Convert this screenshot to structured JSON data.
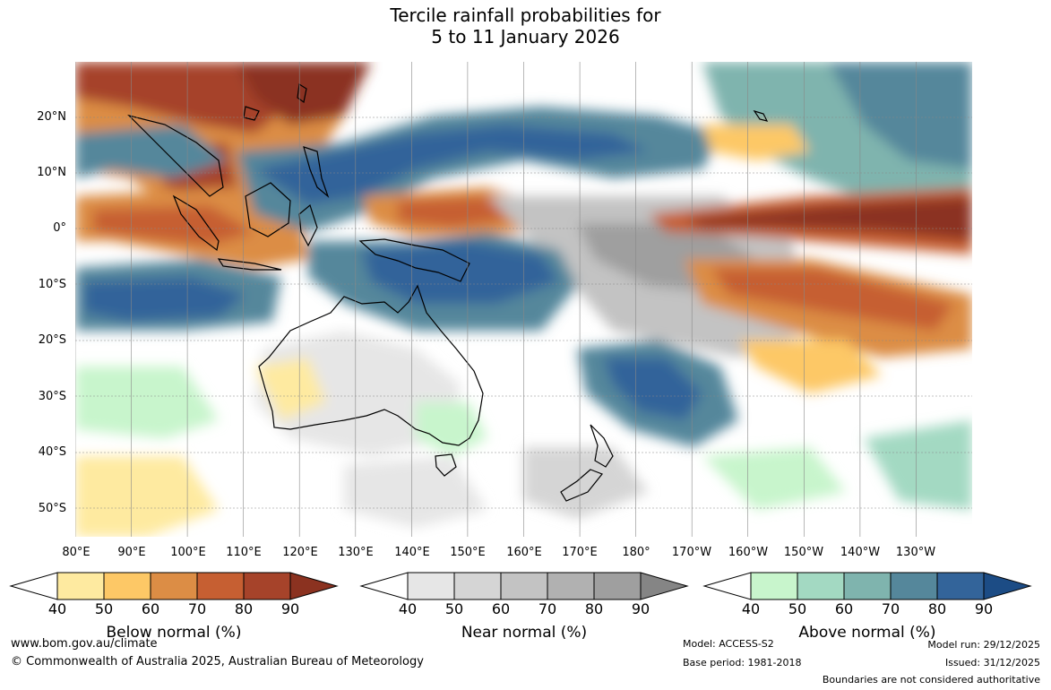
{
  "title": {
    "line1": "Tercile rainfall probabilities for",
    "line2": "5 to 11 January 2026"
  },
  "map": {
    "lat_labels": [
      "20°N",
      "10°N",
      "0°",
      "10°S",
      "20°S",
      "30°S",
      "40°S",
      "50°S"
    ],
    "lon_labels": [
      "80°E",
      "90°E",
      "100°E",
      "110°E",
      "120°E",
      "130°E",
      "140°E",
      "150°E",
      "160°E",
      "170°E",
      "180°",
      "170°W",
      "160°W",
      "150°W",
      "140°W",
      "130°W"
    ]
  },
  "legends": [
    {
      "title": "Below normal (%)",
      "ticks": [
        "40",
        "50",
        "60",
        "70",
        "80",
        "90"
      ],
      "colors": [
        "#ffffff",
        "#feeaa0",
        "#fdc866",
        "#dc8d45",
        "#c65f32",
        "#a6432a",
        "#8b3220"
      ]
    },
    {
      "title": "Near normal (%)",
      "ticks": [
        "40",
        "50",
        "60",
        "70",
        "80",
        "90"
      ],
      "colors": [
        "#ffffff",
        "#e6e6e6",
        "#d5d5d5",
        "#c3c3c3",
        "#b1b1b1",
        "#9f9f9f",
        "#858585"
      ]
    },
    {
      "title": "Above normal (%)",
      "ticks": [
        "40",
        "50",
        "60",
        "70",
        "80",
        "90"
      ],
      "colors": [
        "#ffffff",
        "#c8f5cc",
        "#a3d9c2",
        "#7fb4ae",
        "#55879b",
        "#33649a",
        "#1c4c85"
      ]
    }
  ],
  "footer": {
    "url": "www.bom.gov.au/climate",
    "copyright": "© Commonwealth of Australia 2025, Australian Bureau of Meteorology",
    "model": "Model: ACCESS-S2",
    "base_period": "Base period: 1981-2018",
    "model_run": "Model run: 29/12/2025",
    "issued": "Issued: 31/12/2025",
    "disclaimer": "Boundaries are not considered authoritative"
  }
}
